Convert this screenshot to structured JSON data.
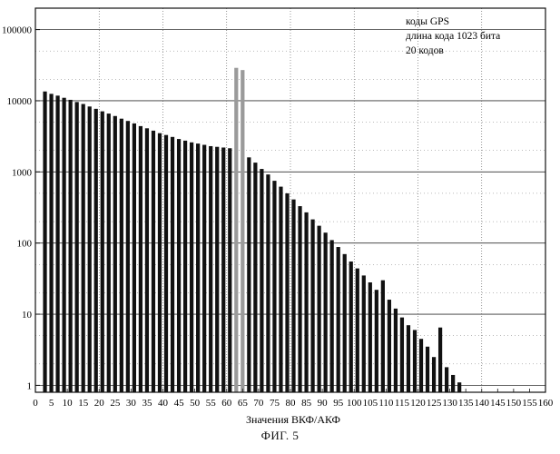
{
  "chart_data": {
    "type": "bar",
    "yscale": "log",
    "ylim": [
      0.8,
      200000
    ],
    "xlim": [
      0,
      160
    ],
    "xlabel": "Значения ВКФ/АКФ",
    "ylabel": "",
    "grid": true,
    "y_ticks": [
      1,
      10,
      100,
      1000,
      10000,
      100000
    ],
    "y_tick_labels": [
      "1",
      "10",
      "100",
      "1000",
      "10000",
      "100000"
    ],
    "x_ticks": [
      0,
      5,
      10,
      15,
      20,
      25,
      30,
      35,
      40,
      45,
      50,
      55,
      60,
      65,
      70,
      75,
      80,
      85,
      90,
      95,
      100,
      105,
      110,
      115,
      120,
      125,
      130,
      135,
      140,
      145,
      150,
      155,
      160
    ],
    "x_tick_labels": [
      "0",
      "5",
      "10",
      "15",
      "20",
      "25",
      "30",
      "35",
      "40",
      "45",
      "50",
      "55",
      "60",
      "65",
      "70",
      "75",
      "80",
      "85",
      "90",
      "95",
      "100",
      "105",
      "110",
      "115",
      "120",
      "125",
      "130",
      "135",
      "140",
      "145",
      "150",
      "155",
      "160"
    ],
    "annotation_lines": [
      "коды GPS",
      "длина кода 1023 бита",
      "20 кодов"
    ],
    "annotation_position": "top-right",
    "series": [
      {
        "role": "ccf",
        "color": "#111111",
        "points": [
          {
            "x": 3,
            "y": 13500
          },
          {
            "x": 5,
            "y": 12500
          },
          {
            "x": 7,
            "y": 11800
          },
          {
            "x": 9,
            "y": 11000
          },
          {
            "x": 11,
            "y": 10300
          },
          {
            "x": 13,
            "y": 9600
          },
          {
            "x": 15,
            "y": 9000
          },
          {
            "x": 17,
            "y": 8300
          },
          {
            "x": 19,
            "y": 7700
          },
          {
            "x": 21,
            "y": 7100
          },
          {
            "x": 23,
            "y": 6600
          },
          {
            "x": 25,
            "y": 6100
          },
          {
            "x": 27,
            "y": 5600
          },
          {
            "x": 29,
            "y": 5200
          },
          {
            "x": 31,
            "y": 4800
          },
          {
            "x": 33,
            "y": 4400
          },
          {
            "x": 35,
            "y": 4100
          },
          {
            "x": 37,
            "y": 3800
          },
          {
            "x": 39,
            "y": 3500
          },
          {
            "x": 41,
            "y": 3300
          },
          {
            "x": 43,
            "y": 3100
          },
          {
            "x": 45,
            "y": 2900
          },
          {
            "x": 47,
            "y": 2750
          },
          {
            "x": 49,
            "y": 2600
          },
          {
            "x": 51,
            "y": 2500
          },
          {
            "x": 53,
            "y": 2400
          },
          {
            "x": 55,
            "y": 2300
          },
          {
            "x": 57,
            "y": 2250
          },
          {
            "x": 59,
            "y": 2200
          },
          {
            "x": 61,
            "y": 2150
          },
          {
            "x": 67,
            "y": 1600
          },
          {
            "x": 69,
            "y": 1350
          },
          {
            "x": 71,
            "y": 1100
          },
          {
            "x": 73,
            "y": 920
          },
          {
            "x": 75,
            "y": 750
          },
          {
            "x": 77,
            "y": 620
          },
          {
            "x": 79,
            "y": 500
          },
          {
            "x": 81,
            "y": 410
          },
          {
            "x": 83,
            "y": 330
          },
          {
            "x": 85,
            "y": 270
          },
          {
            "x": 87,
            "y": 215
          },
          {
            "x": 89,
            "y": 175
          },
          {
            "x": 91,
            "y": 140
          },
          {
            "x": 93,
            "y": 110
          },
          {
            "x": 95,
            "y": 88
          },
          {
            "x": 97,
            "y": 70
          },
          {
            "x": 99,
            "y": 55
          },
          {
            "x": 101,
            "y": 44
          },
          {
            "x": 103,
            "y": 35
          },
          {
            "x": 105,
            "y": 28
          },
          {
            "x": 107,
            "y": 22
          },
          {
            "x": 109,
            "y": 30
          },
          {
            "x": 111,
            "y": 16
          },
          {
            "x": 113,
            "y": 12
          },
          {
            "x": 115,
            "y": 9
          },
          {
            "x": 117,
            "y": 7
          },
          {
            "x": 119,
            "y": 6
          },
          {
            "x": 121,
            "y": 4.5
          },
          {
            "x": 123,
            "y": 3.5
          },
          {
            "x": 125,
            "y": 2.5
          },
          {
            "x": 127,
            "y": 6.5
          },
          {
            "x": 129,
            "y": 1.8
          },
          {
            "x": 131,
            "y": 1.4
          },
          {
            "x": 133,
            "y": 1.1
          }
        ]
      },
      {
        "role": "acf",
        "color": "#9a9a9a",
        "points": [
          {
            "x": 63,
            "y": 29000
          },
          {
            "x": 65,
            "y": 27000
          }
        ]
      }
    ]
  },
  "figure_caption": "ФИГ. 5"
}
